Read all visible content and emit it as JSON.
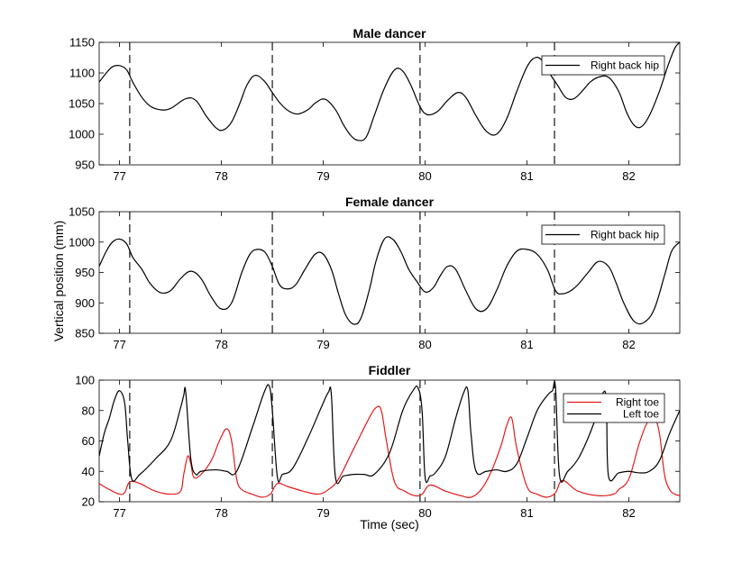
{
  "figure": {
    "shared_ylabel": "Vertical position (mm)",
    "shared_xlabel": "Time (sec)"
  },
  "chart_data": [
    {
      "type": "line",
      "title": "Male dancer",
      "xlim": [
        76.8,
        82.5
      ],
      "ylim": [
        950,
        1150
      ],
      "xticks": [
        77,
        78,
        79,
        80,
        81,
        82
      ],
      "yticks": [
        950,
        1000,
        1050,
        1100,
        1150
      ],
      "vlines": [
        77.1,
        78.5,
        79.95,
        81.27
      ],
      "legend_position": "top-right",
      "series": [
        {
          "name": "Right back hip",
          "color": "#000000",
          "x": [
            76.8,
            76.87,
            76.93,
            77.0,
            77.07,
            77.13,
            77.22,
            77.3,
            77.4,
            77.5,
            77.65,
            77.75,
            77.85,
            77.95,
            78.02,
            78.1,
            78.18,
            78.25,
            78.33,
            78.42,
            78.5,
            78.58,
            78.66,
            78.75,
            78.85,
            78.93,
            79.02,
            79.12,
            79.2,
            79.27,
            79.34,
            79.42,
            79.5,
            79.6,
            79.7,
            79.78,
            79.86,
            79.95,
            80.02,
            80.12,
            80.22,
            80.32,
            80.4,
            80.5,
            80.6,
            80.7,
            80.8,
            80.9,
            81.0,
            81.08,
            81.15,
            81.22,
            81.3,
            81.38,
            81.46,
            81.54,
            81.62,
            81.7,
            81.8,
            81.9,
            81.98,
            82.05,
            82.12,
            82.2,
            82.3,
            82.38,
            82.45,
            82.5
          ],
          "y": [
            1085,
            1100,
            1110,
            1112,
            1105,
            1085,
            1060,
            1046,
            1040,
            1042,
            1058,
            1055,
            1030,
            1010,
            1007,
            1020,
            1050,
            1080,
            1096,
            1087,
            1068,
            1050,
            1038,
            1033,
            1040,
            1052,
            1057,
            1040,
            1015,
            998,
            990,
            995,
            1030,
            1075,
            1105,
            1103,
            1080,
            1045,
            1032,
            1037,
            1055,
            1068,
            1060,
            1030,
            1005,
            1000,
            1025,
            1070,
            1110,
            1125,
            1120,
            1100,
            1080,
            1060,
            1058,
            1070,
            1085,
            1093,
            1093,
            1070,
            1035,
            1015,
            1012,
            1030,
            1070,
            1110,
            1140,
            1150
          ]
        }
      ]
    },
    {
      "type": "line",
      "title": "Female dancer",
      "xlim": [
        76.8,
        82.5
      ],
      "ylim": [
        850,
        1050
      ],
      "xticks": [
        77,
        78,
        79,
        80,
        81,
        82
      ],
      "yticks": [
        850,
        900,
        950,
        1000,
        1050
      ],
      "vlines": [
        77.1,
        78.5,
        79.95,
        81.27
      ],
      "legend_position": "top-right",
      "series": [
        {
          "name": "Right back hip",
          "color": "#000000",
          "x": [
            76.8,
            76.87,
            76.93,
            77.0,
            77.07,
            77.13,
            77.22,
            77.3,
            77.4,
            77.5,
            77.6,
            77.7,
            77.8,
            77.9,
            78.0,
            78.1,
            78.2,
            78.28,
            78.35,
            78.43,
            78.5,
            78.57,
            78.65,
            78.73,
            78.82,
            78.92,
            79.0,
            79.08,
            79.15,
            79.22,
            79.3,
            79.37,
            79.45,
            79.52,
            79.6,
            79.68,
            79.76,
            79.84,
            79.92,
            80.0,
            80.08,
            80.15,
            80.22,
            80.3,
            80.4,
            80.5,
            80.6,
            80.7,
            80.8,
            80.9,
            81.0,
            81.1,
            81.2,
            81.28,
            81.35,
            81.43,
            81.5,
            81.6,
            81.7,
            81.8,
            81.87,
            81.95,
            82.05,
            82.15,
            82.25,
            82.35,
            82.42,
            82.5
          ],
          "y": [
            960,
            985,
            1000,
            1005,
            997,
            975,
            955,
            932,
            917,
            920,
            940,
            952,
            940,
            910,
            890,
            900,
            950,
            980,
            988,
            983,
            960,
            930,
            923,
            930,
            955,
            980,
            980,
            955,
            915,
            880,
            865,
            875,
            920,
            970,
            1005,
            1005,
            985,
            955,
            935,
            918,
            925,
            945,
            960,
            955,
            920,
            890,
            890,
            920,
            960,
            985,
            988,
            980,
            955,
            920,
            915,
            920,
            930,
            950,
            968,
            960,
            935,
            900,
            870,
            868,
            890,
            945,
            985,
            1000
          ]
        }
      ]
    },
    {
      "type": "line",
      "title": "Fiddler",
      "xlim": [
        76.8,
        82.5
      ],
      "ylim": [
        20,
        100
      ],
      "xticks": [
        77,
        78,
        79,
        80,
        81,
        82
      ],
      "yticks": [
        20,
        40,
        60,
        80,
        100
      ],
      "vlines": [
        77.1,
        78.5,
        79.95,
        81.27
      ],
      "legend_position": "top-right",
      "series": [
        {
          "name": "Right toe",
          "color": "#e31a1c",
          "x": [
            76.8,
            76.9,
            77.0,
            77.05,
            77.1,
            77.2,
            77.35,
            77.5,
            77.6,
            77.63,
            77.67,
            77.7,
            77.73,
            77.8,
            77.9,
            77.98,
            78.05,
            78.1,
            78.15,
            78.2,
            78.3,
            78.4,
            78.48,
            78.55,
            78.65,
            78.8,
            78.95,
            79.05,
            79.15,
            79.3,
            79.45,
            79.52,
            79.57,
            79.62,
            79.7,
            79.8,
            79.9,
            79.97,
            80.05,
            80.2,
            80.35,
            80.45,
            80.55,
            80.65,
            80.75,
            80.8,
            80.85,
            80.9,
            81.0,
            81.1,
            81.2,
            81.28,
            81.35,
            81.5,
            81.7,
            81.85,
            81.9,
            82.0,
            82.1,
            82.18,
            82.25,
            82.3,
            82.35,
            82.4,
            82.45,
            82.5
          ],
          "y": [
            32,
            28,
            25,
            26,
            33,
            32,
            27,
            25,
            27,
            38,
            50,
            45,
            36,
            38,
            47,
            60,
            68,
            60,
            35,
            28,
            25,
            23,
            25,
            32,
            30,
            27,
            25,
            28,
            35,
            55,
            75,
            82,
            80,
            60,
            33,
            27,
            24,
            25,
            31,
            27,
            24,
            23,
            28,
            40,
            58,
            70,
            75,
            55,
            30,
            25,
            23,
            26,
            34,
            27,
            24,
            25,
            28,
            35,
            58,
            72,
            75,
            65,
            38,
            28,
            25,
            24
          ]
        },
        {
          "name": "Left toe",
          "color": "#000000",
          "x": [
            76.8,
            76.85,
            76.9,
            76.95,
            77.0,
            77.05,
            77.08,
            77.12,
            77.2,
            77.35,
            77.5,
            77.6,
            77.63,
            77.65,
            77.7,
            77.75,
            77.8,
            77.95,
            78.05,
            78.15,
            78.3,
            78.42,
            78.47,
            78.5,
            78.55,
            78.6,
            78.7,
            78.85,
            78.98,
            79.05,
            79.08,
            79.12,
            79.2,
            79.3,
            79.4,
            79.5,
            79.65,
            79.78,
            79.88,
            79.93,
            79.97,
            80.0,
            80.05,
            80.1,
            80.2,
            80.3,
            80.38,
            80.42,
            80.45,
            80.5,
            80.6,
            80.7,
            80.8,
            80.9,
            81.0,
            81.1,
            81.2,
            81.25,
            81.28,
            81.32,
            81.4,
            81.5,
            81.6,
            81.7,
            81.75,
            81.78,
            81.8,
            81.9,
            82.0,
            82.1,
            82.2,
            82.3,
            82.4,
            82.5
          ],
          "y": [
            50,
            65,
            75,
            87,
            93,
            85,
            60,
            35,
            38,
            48,
            60,
            82,
            90,
            92,
            48,
            38,
            40,
            41,
            40,
            40,
            68,
            92,
            96,
            80,
            36,
            38,
            42,
            62,
            82,
            92,
            90,
            36,
            37,
            38,
            38,
            38,
            52,
            80,
            93,
            95,
            80,
            36,
            37,
            39,
            50,
            75,
            92,
            93,
            65,
            40,
            40,
            41,
            40,
            45,
            62,
            80,
            90,
            93,
            95,
            37,
            40,
            48,
            62,
            80,
            92,
            85,
            37,
            39,
            40,
            39,
            40,
            47,
            65,
            80
          ]
        }
      ]
    }
  ]
}
